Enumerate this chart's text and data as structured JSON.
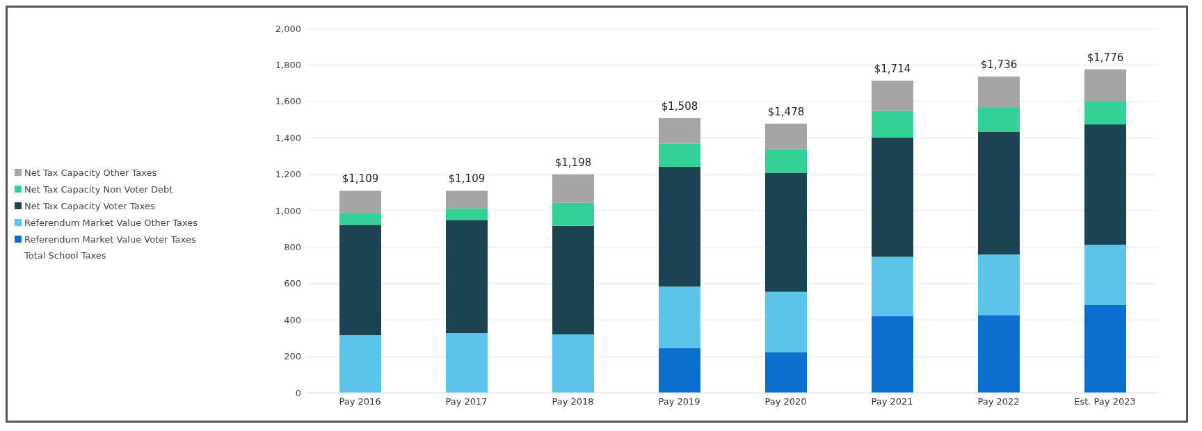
{
  "chart_data": {
    "type": "bar",
    "stacked": true,
    "categories": [
      "Pay 2016",
      "Pay 2017",
      "Pay 2018",
      "Pay 2019",
      "Pay 2020",
      "Pay 2021",
      "Pay 2022",
      "Est. Pay 2023"
    ],
    "series": [
      {
        "name": "Referendum Market Value Voter Taxes",
        "color": "#0a6fcf",
        "values": [
          0,
          0,
          0,
          246,
          221,
          421,
          427,
          483
        ]
      },
      {
        "name": "Referendum Market Value Other Taxes",
        "color": "#5bc4e8",
        "values": [
          317,
          328,
          321,
          337,
          333,
          325,
          333,
          330
        ]
      },
      {
        "name": "Net Tax Capacity Voter Taxes",
        "color": "#1b4450",
        "values": [
          605,
          619,
          596,
          657,
          654,
          656,
          671,
          660
        ]
      },
      {
        "name": "Net Tax Capacity Non Voter Debt",
        "color": "#33d196",
        "values": [
          63,
          65,
          126,
          127,
          129,
          146,
          134,
          129
        ]
      },
      {
        "name": "Net Tax Capacity Other Taxes",
        "color": "#a5a5a5",
        "values": [
          124,
          97,
          155,
          141,
          141,
          166,
          171,
          174
        ]
      }
    ],
    "totals": [
      "$1,109",
      "$1,109",
      "$1,198",
      "$1,508",
      "$1,478",
      "$1,714",
      "$1,736",
      "$1,776"
    ],
    "annotations": [
      "Total School Taxes"
    ],
    "ylim": [
      0,
      2000
    ],
    "yticks": [
      0,
      200,
      400,
      600,
      800,
      {
        "value": 1000,
        "label": "1,000"
      },
      {
        "value": 1200,
        "label": "1,200"
      },
      {
        "value": 1400,
        "label": "1,400"
      },
      {
        "value": 1600,
        "label": "1,600"
      },
      {
        "value": 1800,
        "label": "1,800"
      },
      {
        "value": 2000,
        "label": "2,000"
      }
    ],
    "grid": "y",
    "legend": "left"
  }
}
